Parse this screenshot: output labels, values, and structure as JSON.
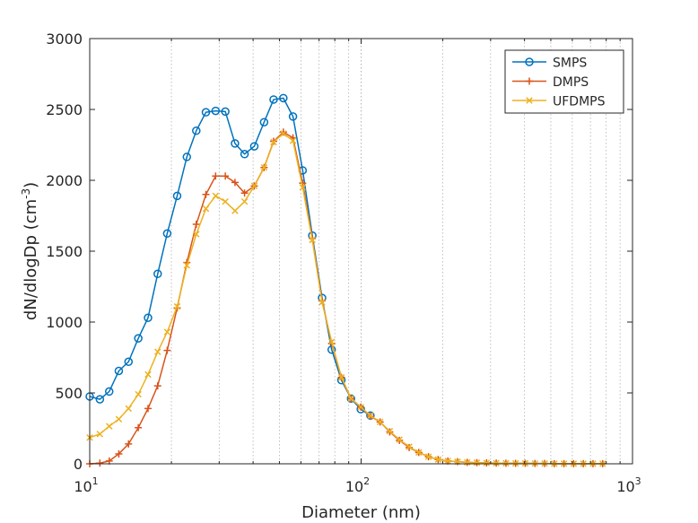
{
  "chart_data": {
    "type": "line",
    "xscale": "log",
    "xlim": [
      10,
      1000
    ],
    "ylim": [
      0,
      3000
    ],
    "xlabel": "Diameter (nm)",
    "ylabel": {
      "main": "dN/dlogDp (cm",
      "sup": "-3",
      "end": ")"
    },
    "yticks": [
      0,
      500,
      1000,
      1500,
      2000,
      2500,
      3000
    ],
    "xticks": [
      {
        "value": 10,
        "base": "10",
        "exp": "1"
      },
      {
        "value": 100,
        "base": "10",
        "exp": "2"
      },
      {
        "value": 1000,
        "base": "10",
        "exp": "3"
      }
    ],
    "grid": "x-minor-dotted",
    "legend_position": "top-right",
    "series": [
      {
        "name": "SMPS",
        "color": "#0072BD",
        "marker": "circle",
        "x": [
          10,
          10.9,
          11.8,
          12.8,
          13.9,
          15.1,
          16.4,
          17.8,
          19.3,
          21,
          22.8,
          24.7,
          26.8,
          29.1,
          31.6,
          34.3,
          37.2,
          40.4,
          43.9,
          47.6,
          51.7,
          56.1,
          60.9,
          66.1,
          71.8,
          77.9,
          84.6,
          91.8,
          99.7,
          108.2
        ],
        "y": [
          475,
          455,
          510,
          655,
          720,
          885,
          1030,
          1340,
          1625,
          1890,
          2165,
          2350,
          2480,
          2490,
          2485,
          2260,
          2185,
          2240,
          2410,
          2570,
          2580,
          2450,
          2070,
          1610,
          1170,
          805,
          590,
          460,
          385,
          340
        ]
      },
      {
        "name": "DMPS",
        "color": "#D95319",
        "marker": "plus",
        "x": [
          10,
          10.9,
          11.8,
          12.8,
          13.9,
          15.1,
          16.4,
          17.8,
          19.3,
          21,
          22.8,
          24.7,
          26.8,
          29.1,
          31.6,
          34.3,
          37.2,
          40.4,
          43.9,
          47.6,
          51.7,
          56.1,
          60.9,
          66.1,
          71.8,
          77.9,
          84.6,
          91.8,
          99.7,
          108.2,
          117.5,
          127.5,
          138.4,
          150.3,
          163.1,
          177.1,
          192.3,
          208.7,
          226.6,
          246,
          267,
          289.9,
          314.7,
          341.6,
          370.8,
          402.6,
          437,
          474.4,
          515,
          559.1,
          606.9,
          658.8,
          715.2,
          776.4
        ],
        "y": [
          0,
          5,
          20,
          70,
          140,
          255,
          390,
          550,
          800,
          1100,
          1420,
          1690,
          1900,
          2030,
          2030,
          1985,
          1910,
          1960,
          2090,
          2275,
          2340,
          2300,
          1980,
          1590,
          1150,
          850,
          610,
          460,
          400,
          335,
          295,
          225,
          165,
          115,
          80,
          50,
          30,
          20,
          15,
          10,
          8,
          6,
          5,
          4,
          3,
          3,
          2,
          2,
          1,
          1,
          1,
          1,
          1,
          1
        ]
      },
      {
        "name": "UFDMPS",
        "color": "#EDB120",
        "marker": "x",
        "x": [
          10,
          10.9,
          11.8,
          12.8,
          13.9,
          15.1,
          16.4,
          17.8,
          19.3,
          21,
          22.8,
          24.7,
          26.8,
          29.1,
          31.6,
          34.3,
          37.2,
          40.4,
          43.9,
          47.6,
          51.7,
          56.1,
          60.9,
          66.1,
          71.8,
          77.9,
          84.6,
          91.8,
          99.7,
          108.2,
          117.5,
          127.5,
          138.4,
          150.3,
          163.1,
          177.1,
          192.3,
          208.7,
          226.6,
          246,
          267,
          289.9,
          314.7,
          341.6,
          370.8,
          402.6,
          437,
          474.4,
          515,
          559.1,
          606.9,
          658.8,
          715.2,
          776.4
        ],
        "y": [
          185,
          210,
          265,
          315,
          390,
          490,
          630,
          790,
          930,
          1110,
          1400,
          1620,
          1800,
          1890,
          1850,
          1785,
          1850,
          1960,
          2090,
          2270,
          2330,
          2280,
          1950,
          1580,
          1140,
          860,
          610,
          460,
          400,
          340,
          295,
          230,
          170,
          120,
          80,
          50,
          30,
          20,
          15,
          10,
          8,
          6,
          5,
          4,
          3,
          3,
          2,
          2,
          1,
          1,
          1,
          1,
          1,
          1
        ]
      }
    ]
  }
}
